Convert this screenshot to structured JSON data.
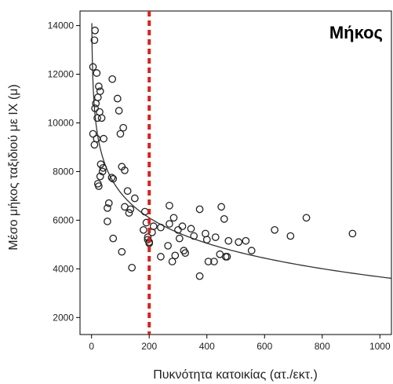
{
  "chart_data": {
    "type": "scatter",
    "title": "Μήκος",
    "xlabel": "Πυκνότητα κατοικίας (ατ./εκτ.)",
    "ylabel": "Μέσο μήκος ταξιδιού με ΙΧ (μ)",
    "xlim": [
      -40,
      1040
    ],
    "ylim": [
      1300,
      14600
    ],
    "xticks": [
      0,
      200,
      400,
      600,
      800,
      1000
    ],
    "yticks": [
      2000,
      4000,
      6000,
      8000,
      10000,
      12000,
      14000
    ],
    "grid": false,
    "threshold_x": 200,
    "threshold_color": "#e0201a",
    "points": [
      [
        12,
        13800
      ],
      [
        10,
        13400
      ],
      [
        5,
        12300
      ],
      [
        18,
        12050
      ],
      [
        25,
        11500
      ],
      [
        30,
        11300
      ],
      [
        22,
        11050
      ],
      [
        15,
        10800
      ],
      [
        12,
        10600
      ],
      [
        28,
        10450
      ],
      [
        20,
        10200
      ],
      [
        35,
        10200
      ],
      [
        72,
        11800
      ],
      [
        90,
        11000
      ],
      [
        95,
        10500
      ],
      [
        110,
        9800
      ],
      [
        100,
        9550
      ],
      [
        5,
        9550
      ],
      [
        10,
        9100
      ],
      [
        18,
        9350
      ],
      [
        42,
        9350
      ],
      [
        32,
        8300
      ],
      [
        40,
        8150
      ],
      [
        38,
        8000
      ],
      [
        30,
        7800
      ],
      [
        22,
        7500
      ],
      [
        25,
        7400
      ],
      [
        70,
        7750
      ],
      [
        105,
        8200
      ],
      [
        115,
        8050
      ],
      [
        125,
        7200
      ],
      [
        150,
        6900
      ],
      [
        60,
        6700
      ],
      [
        55,
        6500
      ],
      [
        115,
        6550
      ],
      [
        135,
        6450
      ],
      [
        185,
        6350
      ],
      [
        190,
        5900
      ],
      [
        55,
        5950
      ],
      [
        75,
        5250
      ],
      [
        105,
        4700
      ],
      [
        140,
        4050
      ],
      [
        195,
        5300
      ],
      [
        195,
        5200
      ],
      [
        200,
        5050
      ],
      [
        200,
        5100
      ],
      [
        210,
        5500
      ],
      [
        215,
        5750
      ],
      [
        240,
        5700
      ],
      [
        270,
        6600
      ],
      [
        270,
        5850
      ],
      [
        285,
        6100
      ],
      [
        300,
        5600
      ],
      [
        305,
        5250
      ],
      [
        315,
        5750
      ],
      [
        320,
        4750
      ],
      [
        325,
        4650
      ],
      [
        345,
        5650
      ],
      [
        355,
        5350
      ],
      [
        375,
        6450
      ],
      [
        395,
        5450
      ],
      [
        400,
        5200
      ],
      [
        240,
        4500
      ],
      [
        265,
        4950
      ],
      [
        280,
        4300
      ],
      [
        290,
        4550
      ],
      [
        375,
        3700
      ],
      [
        405,
        4300
      ],
      [
        425,
        4300
      ],
      [
        430,
        5300
      ],
      [
        445,
        4600
      ],
      [
        450,
        6550
      ],
      [
        460,
        6050
      ],
      [
        465,
        4500
      ],
      [
        470,
        4500
      ],
      [
        475,
        5150
      ],
      [
        510,
        5100
      ],
      [
        535,
        5150
      ],
      [
        555,
        4750
      ],
      [
        635,
        5600
      ],
      [
        690,
        5350
      ],
      [
        745,
        6100
      ],
      [
        905,
        5450
      ],
      [
        75,
        7700
      ],
      [
        130,
        6300
      ],
      [
        180,
        5600
      ]
    ],
    "fit_curve": {
      "model": "y = 14100 - 1510 * ln(x)",
      "x_from": 1,
      "x_to": 1040
    }
  }
}
